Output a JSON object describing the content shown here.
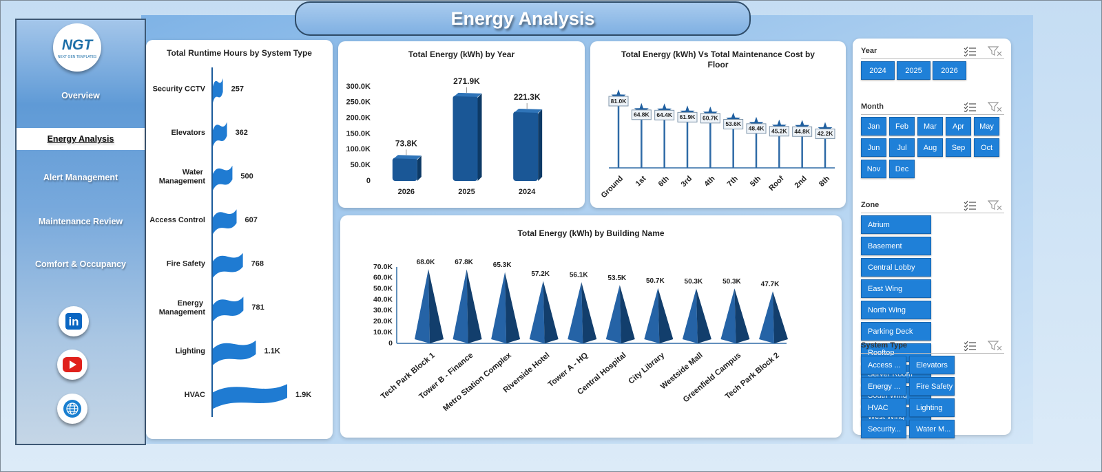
{
  "header": {
    "title": "Energy Analysis"
  },
  "logo": {
    "name": "NGT",
    "tagline": "NEXT GEN TEMPLATES"
  },
  "nav": [
    "Overview",
    "Energy Analysis",
    "Alert Management",
    "Maintenance Review",
    "Comfort & Occupancy"
  ],
  "social": {
    "linkedin": "in"
  },
  "chart_data": [
    {
      "type": "wave-bar",
      "title": "Total Runtime Hours by System Type",
      "categories": [
        "Security CCTV",
        "Elevators",
        "Water Management",
        "Access Control",
        "Fire Safety",
        "Energy Management",
        "Lighting",
        "HVAC"
      ],
      "values": [
        257,
        362,
        500,
        607,
        768,
        781,
        1100,
        1900
      ],
      "value_labels": [
        "257",
        "362",
        "500",
        "607",
        "768",
        "781",
        "1.1K",
        "1.9K"
      ],
      "color": "#1f7bd2"
    },
    {
      "type": "bar3d",
      "title": "Total Energy (kWh) by Year",
      "categories": [
        "2026",
        "2025",
        "2024"
      ],
      "values": [
        73800,
        271900,
        221300
      ],
      "value_labels": [
        "73.8K",
        "271.9K",
        "221.3K"
      ],
      "ylim": [
        0,
        300000
      ],
      "yticks": [
        0,
        {
          "value": 50000,
          "label": "50.0K"
        },
        {
          "value": 100000,
          "label": "100.0K"
        },
        {
          "value": 150000,
          "label": "150.0K"
        },
        {
          "value": 200000,
          "label": "200.0K"
        },
        {
          "value": 250000,
          "label": "250.0K"
        },
        {
          "value": 300000,
          "label": "300.0K"
        }
      ],
      "color": "#1a5796"
    },
    {
      "type": "lollipop",
      "title": "Total Energy (kWh) Vs Total Maintenance Cost by Floor",
      "categories": [
        "Ground",
        "1st",
        "6th",
        "3rd",
        "4th",
        "7th",
        "5th",
        "Roof",
        "2nd",
        "8th"
      ],
      "values": [
        81000,
        64800,
        64400,
        61900,
        60700,
        53600,
        48400,
        45200,
        44800,
        42200
      ],
      "value_labels": [
        "81.0K",
        "64.8K",
        "64.4K",
        "61.9K",
        "60.7K",
        "53.6K",
        "48.4K",
        "45.2K",
        "44.8K",
        "42.2K"
      ],
      "color": "#2e6aa6"
    },
    {
      "type": "cone",
      "title": "Total Energy (kWh) by Building Name",
      "categories": [
        "Tech Park Block 1",
        "Tower B - Finance",
        "Metro Station Complex",
        "Riverside Hotel",
        "Tower A - HQ",
        "Central Hospital",
        "City Library",
        "Westside Mall",
        "Greenfield Campus",
        "Tech Park Block 2"
      ],
      "values": [
        68000,
        67800,
        65300,
        57200,
        56100,
        53500,
        50700,
        50300,
        50300,
        47700
      ],
      "value_labels": [
        "68.0K",
        "67.8K",
        "65.3K",
        "57.2K",
        "56.1K",
        "53.5K",
        "50.7K",
        "50.3K",
        "50.3K",
        "47.7K"
      ],
      "ylim": [
        0,
        70000
      ],
      "yticks": [
        0,
        {
          "value": 10000,
          "label": "10.0K"
        },
        {
          "value": 20000,
          "label": "20.0K"
        },
        {
          "value": 30000,
          "label": "30.0K"
        },
        {
          "value": 40000,
          "label": "40.0K"
        },
        {
          "value": 50000,
          "label": "50.0K"
        },
        {
          "value": 60000,
          "label": "60.0K"
        },
        {
          "value": 70000,
          "label": "70.0K"
        }
      ],
      "color": "#2563a6"
    }
  ],
  "slicers": [
    {
      "title": "Year",
      "items": [
        "2024",
        "2025",
        "2026"
      ]
    },
    {
      "title": "Month",
      "items": [
        "Jan",
        "Feb",
        "Mar",
        "Apr",
        "May",
        "Jun",
        "Jul",
        "Aug",
        "Sep",
        "Oct",
        "Nov",
        "Dec"
      ]
    },
    {
      "title": "Zone",
      "items": [
        "Atrium",
        "Basement",
        "Central Lobby",
        "East Wing",
        "North Wing",
        "Parking Deck",
        "Rooftop",
        "Server Room",
        "South Wing",
        "West Wing"
      ]
    },
    {
      "title": "System Type",
      "items": [
        "Access ...",
        "Elevators",
        "Energy ...",
        "Fire Safety",
        "HVAC",
        "Lighting",
        "Security...",
        "Water M..."
      ]
    }
  ]
}
